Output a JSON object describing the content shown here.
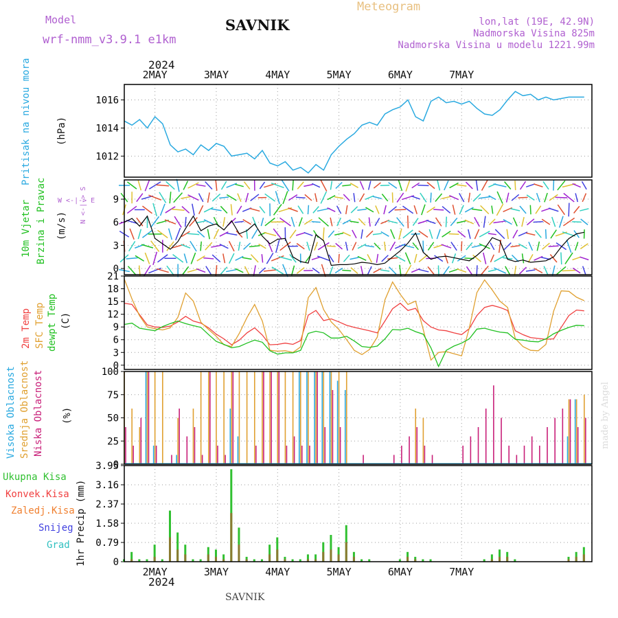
{
  "header": {
    "model_label": "Model",
    "model_name": "wrf-nmm_v3.9.1 e1km",
    "station": "SAVNIK",
    "meteogram": "Meteogram",
    "lonlat": "lon,lat (19E, 42.9N)",
    "altitude": "Nadmorska Visina 825m",
    "model_altitude": "Nadmorska Visina u modelu 1221.99m",
    "footer": "SAVNIK",
    "watermark": "made by Angel"
  },
  "colors": {
    "pressure": "#29a9e0",
    "t2m": "#f04040",
    "tsfc": "#e0a030",
    "dewpt": "#20c020",
    "high_cloud": "#29a9e0",
    "mid_cloud": "#e0a030",
    "low_cloud": "#c81e78",
    "total_precip": "#30c030",
    "conv_precip": "#f04040",
    "frz_precip": "#f08030",
    "snow": "#4040e0",
    "graupel": "#30c0c0",
    "title_purple": "#b060d0"
  },
  "chart_data": [
    {
      "type": "line",
      "panel": "pressure",
      "ylabels": [
        "Pritisak na nivou mora",
        "(hPa)"
      ],
      "yticks": [
        1012,
        1014,
        1016
      ],
      "ylim": [
        1010.5,
        1017.1
      ],
      "x_hours": [
        0,
        3,
        6,
        9,
        12,
        15,
        18,
        21,
        24,
        27,
        30,
        33,
        36,
        39,
        42,
        45,
        48,
        51,
        54,
        57,
        60,
        63,
        66,
        69,
        72,
        75,
        78,
        81,
        84,
        87,
        90,
        93,
        96,
        99,
        102,
        105,
        108,
        111,
        114,
        117,
        120,
        123,
        126,
        129,
        132,
        135,
        138,
        141,
        144,
        147,
        150,
        153,
        156,
        159,
        162,
        165,
        168,
        171,
        174,
        177,
        180
      ],
      "values": [
        1014.5,
        1014.2,
        1014.6,
        1014.0,
        1014.8,
        1014.3,
        1012.8,
        1012.3,
        1012.5,
        1012.1,
        1012.8,
        1012.4,
        1012.9,
        1012.7,
        1012.0,
        1012.1,
        1012.2,
        1011.8,
        1012.4,
        1011.5,
        1011.3,
        1011.6,
        1011.0,
        1011.2,
        1010.8,
        1011.4,
        1011.0,
        1012.1,
        1012.7,
        1013.2,
        1013.6,
        1014.2,
        1014.4,
        1014.2,
        1015.0,
        1015.3,
        1015.5,
        1016.0,
        1014.8,
        1014.5,
        1015.9,
        1016.2,
        1015.8,
        1015.9,
        1015.7,
        1015.9,
        1015.4,
        1015.0,
        1014.9,
        1015.3,
        1016.0,
        1016.6,
        1016.3,
        1016.4,
        1016.0,
        1016.2,
        1016.0,
        1016.1,
        1016.2,
        1016.2,
        1016.2
      ]
    },
    {
      "type": "line",
      "panel": "wind",
      "ylabels": [
        "10m Vjetar",
        "Brzina i Pravac",
        "(m/s)"
      ],
      "compass": "W <-|-> E",
      "compass_ns": "N <-|-> S",
      "yticks": [
        0,
        3,
        6,
        9
      ],
      "ylim": [
        -0.8,
        11.5
      ],
      "x_hours": [
        0,
        3,
        6,
        9,
        12,
        15,
        18,
        21,
        24,
        27,
        30,
        33,
        36,
        39,
        42,
        45,
        48,
        51,
        54,
        57,
        60,
        63,
        66,
        69,
        72,
        75,
        78,
        81,
        84,
        87,
        90,
        93,
        96,
        99,
        102,
        105,
        108,
        111,
        114,
        117,
        120,
        123,
        126,
        129,
        132,
        135,
        138,
        141,
        144,
        147,
        150,
        153,
        156,
        159,
        162,
        165,
        168,
        171,
        174,
        177,
        180
      ],
      "values": [
        6.0,
        6.5,
        5.5,
        6.8,
        3.9,
        3.2,
        2.5,
        3.5,
        5.2,
        6.8,
        4.9,
        5.5,
        5.8,
        5.0,
        6.2,
        4.5,
        4.9,
        5.8,
        4.2,
        3.2,
        3.8,
        3.9,
        1.5,
        0.9,
        0.7,
        4.4,
        3.6,
        0.4,
        0.5,
        0.5,
        0.6,
        0.8,
        0.7,
        0.5,
        0.7,
        1.5,
        2.3,
        3.3,
        4.6,
        2.1,
        1.2,
        1.5,
        1.6,
        1.4,
        1.2,
        1.0,
        1.7,
        2.6,
        4.0,
        3.6,
        1.2,
        0.9,
        1.1,
        0.8,
        0.9,
        1.0,
        1.5,
        2.8,
        3.9,
        4.5,
        4.7
      ]
    },
    {
      "type": "line",
      "panel": "temperature",
      "ylabels": [
        "2m Temp",
        "SFC Temp",
        "dewpt Temp",
        "(C)"
      ],
      "yticks": [
        0,
        3,
        6,
        9,
        12,
        15,
        18,
        21
      ],
      "ylim": [
        -1,
        21
      ],
      "x_hours": [
        0,
        3,
        6,
        9,
        12,
        15,
        18,
        21,
        24,
        27,
        30,
        33,
        36,
        39,
        42,
        45,
        48,
        51,
        54,
        57,
        60,
        63,
        66,
        69,
        72,
        75,
        78,
        81,
        84,
        87,
        90,
        93,
        96,
        99,
        102,
        105,
        108,
        111,
        114,
        117,
        120,
        123,
        126,
        129,
        132,
        135,
        138,
        141,
        144,
        147,
        150,
        153,
        156,
        159,
        162,
        165,
        168,
        171,
        174,
        177,
        180
      ],
      "series": [
        {
          "name": "2m Temp",
          "color": "#f04040",
          "values": [
            14.6,
            14.3,
            11.9,
            9.5,
            9.0,
            8.9,
            9.2,
            10.2,
            11.5,
            10.4,
            9.9,
            8.8,
            7.3,
            6.2,
            4.8,
            5.9,
            7.6,
            8.8,
            7.1,
            4.8,
            4.9,
            5.2,
            4.9,
            5.8,
            11.8,
            12.9,
            10.5,
            10.9,
            10.2,
            9.4,
            8.9,
            8.5,
            8.1,
            7.6,
            10.4,
            13.3,
            14.6,
            12.9,
            13.4,
            10.5,
            9.0,
            8.3,
            8.1,
            7.6,
            7.2,
            8.6,
            11.7,
            13.6,
            14.1,
            13.6,
            12.9,
            8.1,
            7.2,
            6.5,
            6.3,
            6.1,
            6.2,
            8.9,
            11.7,
            13.0,
            12.8
          ]
        },
        {
          "name": "SFC Temp",
          "color": "#e0a030",
          "values": [
            20.3,
            15.6,
            11.6,
            9.0,
            8.6,
            8.3,
            8.8,
            11.3,
            17.0,
            15.1,
            10.1,
            8.4,
            6.8,
            4.8,
            4.4,
            7.5,
            11.2,
            14.3,
            10.4,
            3.5,
            3.3,
            3.4,
            3.0,
            4.3,
            15.9,
            18.3,
            13.1,
            10.2,
            8.4,
            6.0,
            3.5,
            2.5,
            3.7,
            6.6,
            15.4,
            19.6,
            16.7,
            14.3,
            15.1,
            8.4,
            1.2,
            3.0,
            3.2,
            2.7,
            2.2,
            8.7,
            17.1,
            20.1,
            17.7,
            15.1,
            13.6,
            6.3,
            4.4,
            3.5,
            3.4,
            4.9,
            12.7,
            17.5,
            17.4,
            16.0,
            15.2
          ]
        },
        {
          "name": "dewpt Temp",
          "color": "#20c020",
          "values": [
            9.6,
            9.9,
            8.7,
            8.4,
            8.1,
            9.1,
            9.8,
            10.4,
            9.8,
            9.3,
            8.9,
            7.2,
            5.6,
            4.9,
            4.1,
            4.4,
            5.2,
            5.9,
            5.4,
            3.4,
            2.6,
            2.9,
            2.9,
            3.5,
            7.5,
            8.0,
            7.6,
            6.4,
            6.4,
            6.8,
            5.7,
            4.4,
            4.2,
            4.5,
            6.2,
            8.4,
            8.3,
            8.7,
            7.9,
            7.3,
            4.1,
            -0.3,
            3.5,
            4.5,
            5.2,
            6.2,
            8.5,
            8.7,
            8.2,
            7.8,
            7.6,
            6.1,
            5.9,
            5.6,
            5.5,
            6.2,
            7.4,
            8.2,
            8.9,
            9.4,
            9.3
          ]
        }
      ]
    },
    {
      "type": "bar",
      "panel": "clouds",
      "ylabels": [
        "Visoka Oblacnost",
        "Srednja Oblacnost",
        "Niska Oblacnost",
        "(%)"
      ],
      "yticks": [
        0,
        25,
        50,
        75,
        100
      ],
      "ylim": [
        0,
        100
      ],
      "x_hours": [
        0,
        3,
        6,
        9,
        12,
        15,
        18,
        21,
        24,
        27,
        30,
        33,
        36,
        39,
        42,
        45,
        48,
        51,
        54,
        57,
        60,
        63,
        66,
        69,
        72,
        75,
        78,
        81,
        84,
        87,
        90,
        93,
        96,
        99,
        102,
        105,
        108,
        111,
        114,
        117,
        120,
        123,
        126,
        129,
        132,
        135,
        138,
        141,
        144,
        147,
        150,
        153,
        156,
        159,
        162,
        165,
        168,
        171,
        174,
        177,
        180
      ],
      "series": [
        {
          "name": "Visoka Oblacnost",
          "color": "#29a9e0",
          "values": [
            0,
            0,
            0,
            100,
            20,
            0,
            0,
            10,
            0,
            0,
            0,
            0,
            0,
            0,
            60,
            30,
            0,
            0,
            0,
            0,
            0,
            0,
            0,
            100,
            100,
            100,
            100,
            100,
            90,
            80,
            0,
            0,
            0,
            0,
            0,
            0,
            0,
            0,
            0,
            0,
            0,
            0,
            0,
            0,
            0,
            0,
            0,
            0,
            0,
            0,
            0,
            0,
            0,
            0,
            0,
            0,
            0,
            0,
            30,
            70,
            0
          ]
        },
        {
          "name": "Srednja Oblacnost",
          "color": "#e0a030",
          "values": [
            100,
            60,
            40,
            100,
            100,
            100,
            0,
            50,
            0,
            60,
            100,
            100,
            100,
            100,
            100,
            100,
            100,
            100,
            100,
            100,
            100,
            100,
            100,
            100,
            100,
            100,
            100,
            100,
            100,
            100,
            0,
            0,
            0,
            0,
            0,
            0,
            0,
            0,
            60,
            50,
            0,
            0,
            0,
            0,
            0,
            0,
            0,
            0,
            0,
            0,
            0,
            0,
            0,
            0,
            0,
            0,
            0,
            0,
            70,
            70,
            75
          ]
        },
        {
          "name": "Niska Oblacnost",
          "color": "#c81e78",
          "values": [
            40,
            20,
            50,
            100,
            20,
            0,
            10,
            60,
            30,
            40,
            10,
            100,
            20,
            10,
            100,
            0,
            0,
            20,
            100,
            100,
            100,
            20,
            30,
            20,
            20,
            100,
            40,
            80,
            40,
            0,
            0,
            10,
            0,
            0,
            0,
            10,
            20,
            30,
            40,
            20,
            10,
            0,
            0,
            0,
            20,
            30,
            40,
            60,
            85,
            50,
            20,
            10,
            20,
            30,
            20,
            40,
            50,
            60,
            70,
            40,
            50
          ]
        }
      ]
    },
    {
      "type": "bar",
      "panel": "precipitation",
      "ylabels": [
        "1hr Precip (mm)"
      ],
      "legend": [
        "Ukupna Kisa",
        "Konvek.Kisa",
        "Zaledj.Kisa",
        "Snijeg",
        "Grad"
      ],
      "yticks": [
        0,
        0.79,
        1.58,
        2.37,
        3.16,
        3.95
      ],
      "ylim": [
        0,
        3.95
      ],
      "x_hours": [
        0,
        3,
        6,
        9,
        12,
        15,
        18,
        21,
        24,
        27,
        30,
        33,
        36,
        39,
        42,
        45,
        48,
        51,
        54,
        57,
        60,
        63,
        66,
        69,
        72,
        75,
        78,
        81,
        84,
        87,
        90,
        93,
        96,
        99,
        102,
        105,
        108,
        111,
        114,
        117,
        120,
        123,
        126,
        129,
        132,
        135,
        138,
        141,
        144,
        147,
        150,
        153,
        156,
        159,
        162,
        165,
        168,
        171,
        174,
        177,
        180
      ],
      "series": [
        {
          "name": "Ukupna Kisa",
          "color": "#30c030",
          "values": [
            0.1,
            0.4,
            0.1,
            0.1,
            0.7,
            0.1,
            2.1,
            1.2,
            0.7,
            0.1,
            0.1,
            0.6,
            0.5,
            0.3,
            3.8,
            1.4,
            0.2,
            0.1,
            0.1,
            0.7,
            1.0,
            0.2,
            0.1,
            0.1,
            0.3,
            0.3,
            0.8,
            1.1,
            0.6,
            1.5,
            0.4,
            0.1,
            0.1,
            0,
            0,
            0,
            0.1,
            0.4,
            0.2,
            0.1,
            0.1,
            0,
            0,
            0,
            0,
            0,
            0,
            0.1,
            0.3,
            0.5,
            0.4,
            0.1,
            0,
            0,
            0,
            0,
            0,
            0,
            0.2,
            0.4,
            0.6
          ]
        },
        {
          "name": "Konvek.Kisa",
          "color": "#f04040",
          "values": [
            0,
            0.1,
            0,
            0,
            0.2,
            0,
            1.0,
            0.5,
            0.3,
            0,
            0,
            0.3,
            0.2,
            0.1,
            2.0,
            0.7,
            0.1,
            0,
            0,
            0.3,
            0.5,
            0.1,
            0,
            0,
            0.1,
            0.1,
            0.4,
            0.5,
            0.3,
            0.8,
            0.2,
            0,
            0,
            0,
            0,
            0,
            0,
            0.2,
            0.1,
            0,
            0,
            0,
            0,
            0,
            0,
            0,
            0,
            0,
            0.1,
            0.2,
            0.2,
            0,
            0,
            0,
            0,
            0,
            0,
            0,
            0.1,
            0.2,
            0.3
          ]
        }
      ]
    }
  ],
  "x_axis": {
    "hours_per_day": 24,
    "start_offset_hours": 12,
    "day_labels": [
      "2MAY",
      "3MAY",
      "4MAY",
      "5MAY",
      "6MAY",
      "7MAY"
    ],
    "year": "2024"
  }
}
